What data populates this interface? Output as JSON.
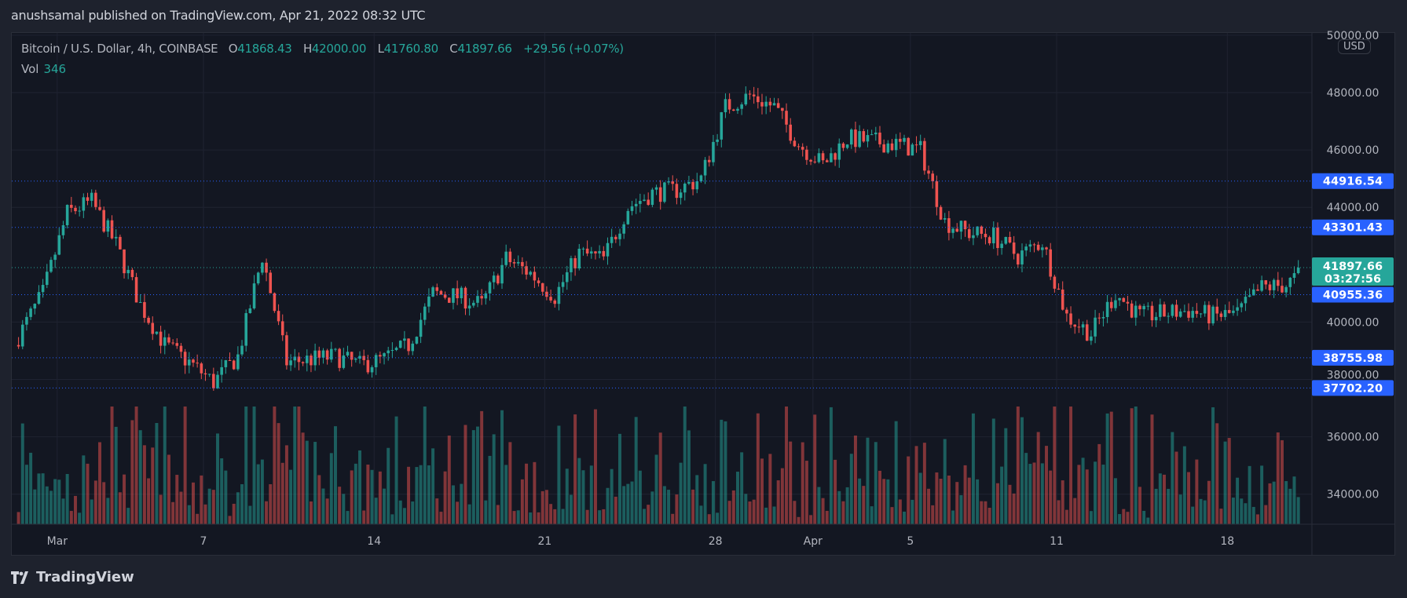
{
  "published": "anushsamal published on TradingView.com, Apr 21, 2022 08:32 UTC",
  "legend": {
    "symbol": "Bitcoin / U.S. Dollar, 4h, COINBASE",
    "open_label": "O",
    "open": "41868.43",
    "high_label": "H",
    "high": "42000.00",
    "low_label": "L",
    "low": "41760.80",
    "close_label": "C",
    "close": "41897.66",
    "change": "+29.56 (+0.07%)",
    "vol_label": "Vol",
    "vol": "346"
  },
  "currency": "USD",
  "brand": "TradingView",
  "colors": {
    "up": "#26a69a",
    "down": "#ef5350",
    "level": "#2962ff",
    "bg": "#131722"
  },
  "chart_data": {
    "type": "candlestick",
    "title": "Bitcoin / U.S. Dollar, 4h, COINBASE",
    "interval": "4h",
    "candles_per_day": 6,
    "daily_closes_approx": [
      39500,
      41000,
      43800,
      44200,
      42700,
      40600,
      39200,
      38600,
      37900,
      38800,
      42300,
      38600,
      38700,
      38800,
      38500,
      38700,
      39200,
      41000,
      40900,
      40600,
      42200,
      41700,
      40900,
      42400,
      42200,
      44000,
      44500,
      44600,
      45000,
      47500,
      47900,
      47500,
      46200,
      45500,
      46400,
      46300,
      46200,
      46000,
      43500,
      43100,
      43000,
      42300,
      42800,
      40200,
      39600,
      41000,
      40200,
      40300,
      40400,
      40200,
      40300,
      41200,
      41300,
      41897.66
    ],
    "last_close": 41897.66,
    "countdown": "03:27:56",
    "ylim": [
      33000,
      50000
    ],
    "y_ticks": [
      "50000.00",
      "48000.00",
      "46000.00",
      "44000.00",
      "40000.00",
      "38000.00",
      "36000.00",
      "34000.00"
    ],
    "y_tick_values": [
      50000,
      48000,
      46000,
      44000,
      40000,
      38000,
      36000,
      34000
    ],
    "x_ticks": [
      {
        "label": "Mar",
        "day": 1
      },
      {
        "label": "7",
        "day": 7
      },
      {
        "label": "14",
        "day": 14
      },
      {
        "label": "21",
        "day": 21
      },
      {
        "label": "28",
        "day": 28
      },
      {
        "label": "Apr",
        "day": 32
      },
      {
        "label": "5",
        "day": 36
      },
      {
        "label": "11",
        "day": 42
      },
      {
        "label": "18",
        "day": 49
      }
    ],
    "horizontal_levels": [
      {
        "value": 44916.54,
        "label": "44916.54"
      },
      {
        "value": 43301.43,
        "label": "43301.43"
      },
      {
        "value": 40955.36,
        "label": "40955.36"
      },
      {
        "value": 38755.98,
        "label": "38755.98"
      },
      {
        "value": 37702.2,
        "label": "37702.20"
      }
    ],
    "current_price_label": "41897.66",
    "volume_last": 346
  }
}
